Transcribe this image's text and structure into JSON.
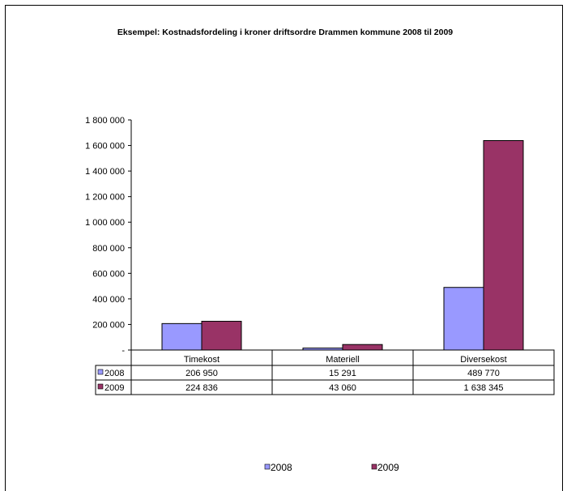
{
  "chart_data": {
    "type": "bar",
    "title": "Eksempel: Kostnadsfordeling i kroner  driftsordre Drammen kommune 2008 til 2009",
    "categories": [
      "Timekost",
      "Materiell",
      "Diversekost"
    ],
    "series": [
      {
        "name": "2008",
        "values": [
          206950,
          15291,
          489770
        ],
        "display": [
          "206 950",
          "15 291",
          "489 770"
        ],
        "color": "#9999ff"
      },
      {
        "name": "2009",
        "values": [
          224836,
          43060,
          1638345
        ],
        "display": [
          "224 836",
          "43 060",
          "1 638 345"
        ],
        "color": "#993366"
      }
    ],
    "ylim": [
      0,
      1800000
    ],
    "yticks": [
      0,
      200000,
      400000,
      600000,
      800000,
      1000000,
      1200000,
      1400000,
      1600000,
      1800000
    ],
    "ytick_labels": [
      "-",
      "200 000",
      "400 000",
      "600 000",
      "800 000",
      "1 000 000",
      "1 200 000",
      "1 400 000",
      "1 600 000",
      "1 800 000"
    ],
    "grid": false,
    "legend_position": "bottom",
    "data_table": true
  }
}
